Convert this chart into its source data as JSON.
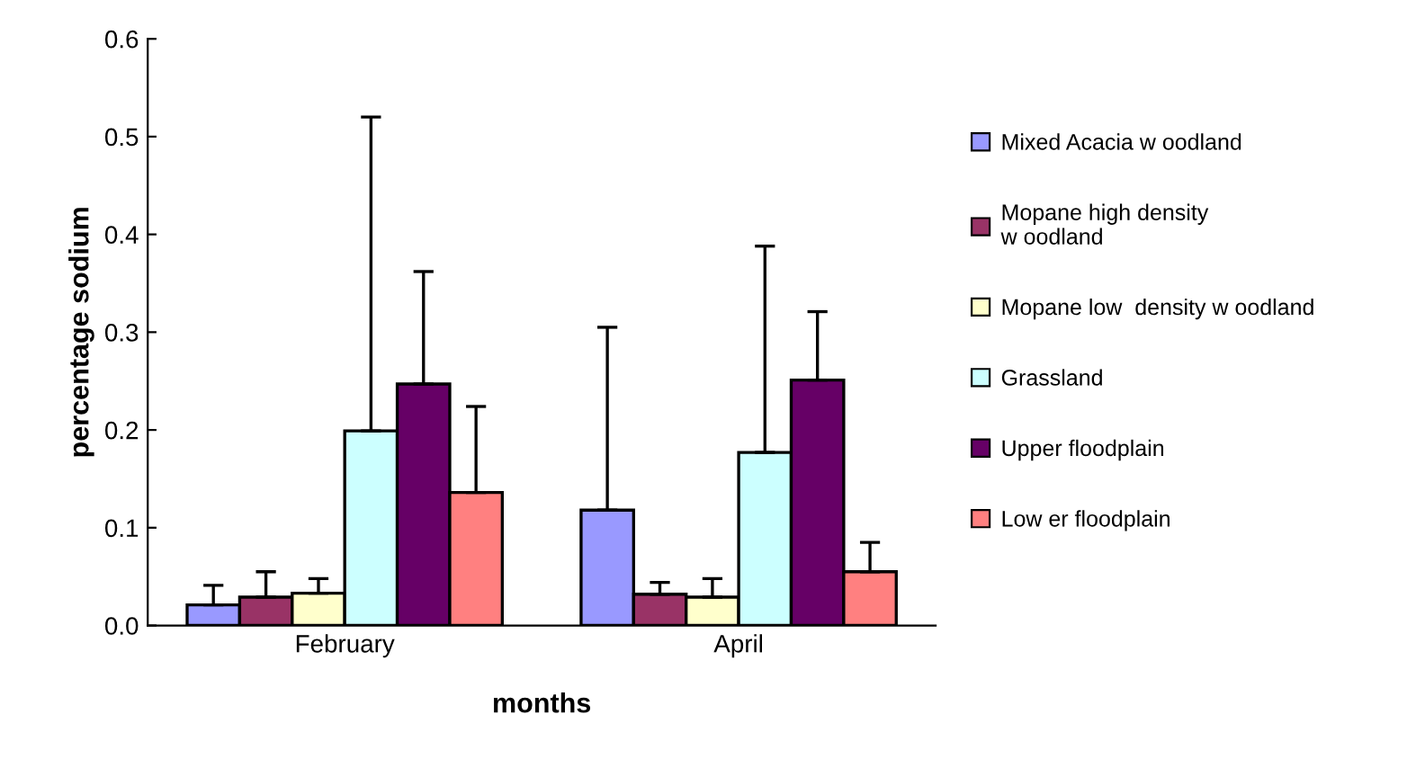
{
  "chart_data": {
    "type": "bar",
    "xlabel": "months",
    "ylabel": "percentage sodium",
    "categories": [
      "February",
      "April"
    ],
    "series": [
      {
        "name": "Mixed Acacia w oodland",
        "color": "#9999ff",
        "values": [
          0.021,
          0.118
        ],
        "errors": [
          [
            0.021,
            0.041
          ],
          [
            0.118,
            0.305
          ]
        ]
      },
      {
        "name": "Mopane high density\nw oodland",
        "color": "#993366",
        "values": [
          0.029,
          0.032
        ],
        "errors": [
          [
            0.029,
            0.055
          ],
          [
            0.032,
            0.044
          ]
        ]
      },
      {
        "name": "Mopane low  density w oodland",
        "color": "#ffffcc",
        "values": [
          0.033,
          0.029
        ],
        "errors": [
          [
            0.033,
            0.048
          ],
          [
            0.029,
            0.048
          ]
        ]
      },
      {
        "name": "Grassland",
        "color": "#ccffff",
        "values": [
          0.199,
          0.177
        ],
        "errors": [
          [
            0.199,
            0.52
          ],
          [
            0.177,
            0.388
          ]
        ]
      },
      {
        "name": "Upper floodplain",
        "color": "#660066",
        "values": [
          0.247,
          0.251
        ],
        "errors": [
          [
            0.247,
            0.362
          ],
          [
            0.251,
            0.321
          ]
        ]
      },
      {
        "name": "Low er floodplain",
        "color": "#ff8080",
        "values": [
          0.136,
          0.055
        ],
        "errors": [
          [
            0.136,
            0.224
          ],
          [
            0.055,
            0.085
          ]
        ]
      }
    ],
    "ylim": [
      0,
      0.6
    ],
    "yticks": [
      {
        "value": 0,
        "label": "0.0"
      },
      {
        "value": 0.1,
        "label": "0.1"
      },
      {
        "value": 0.2,
        "label": "0.2"
      },
      {
        "value": 0.3,
        "label": "0.3"
      },
      {
        "value": 0.4,
        "label": "0.4"
      },
      {
        "value": 0.5,
        "label": "0.5"
      },
      {
        "value": 0.6,
        "label": "0.6"
      }
    ],
    "grid": false,
    "legend": "right"
  }
}
